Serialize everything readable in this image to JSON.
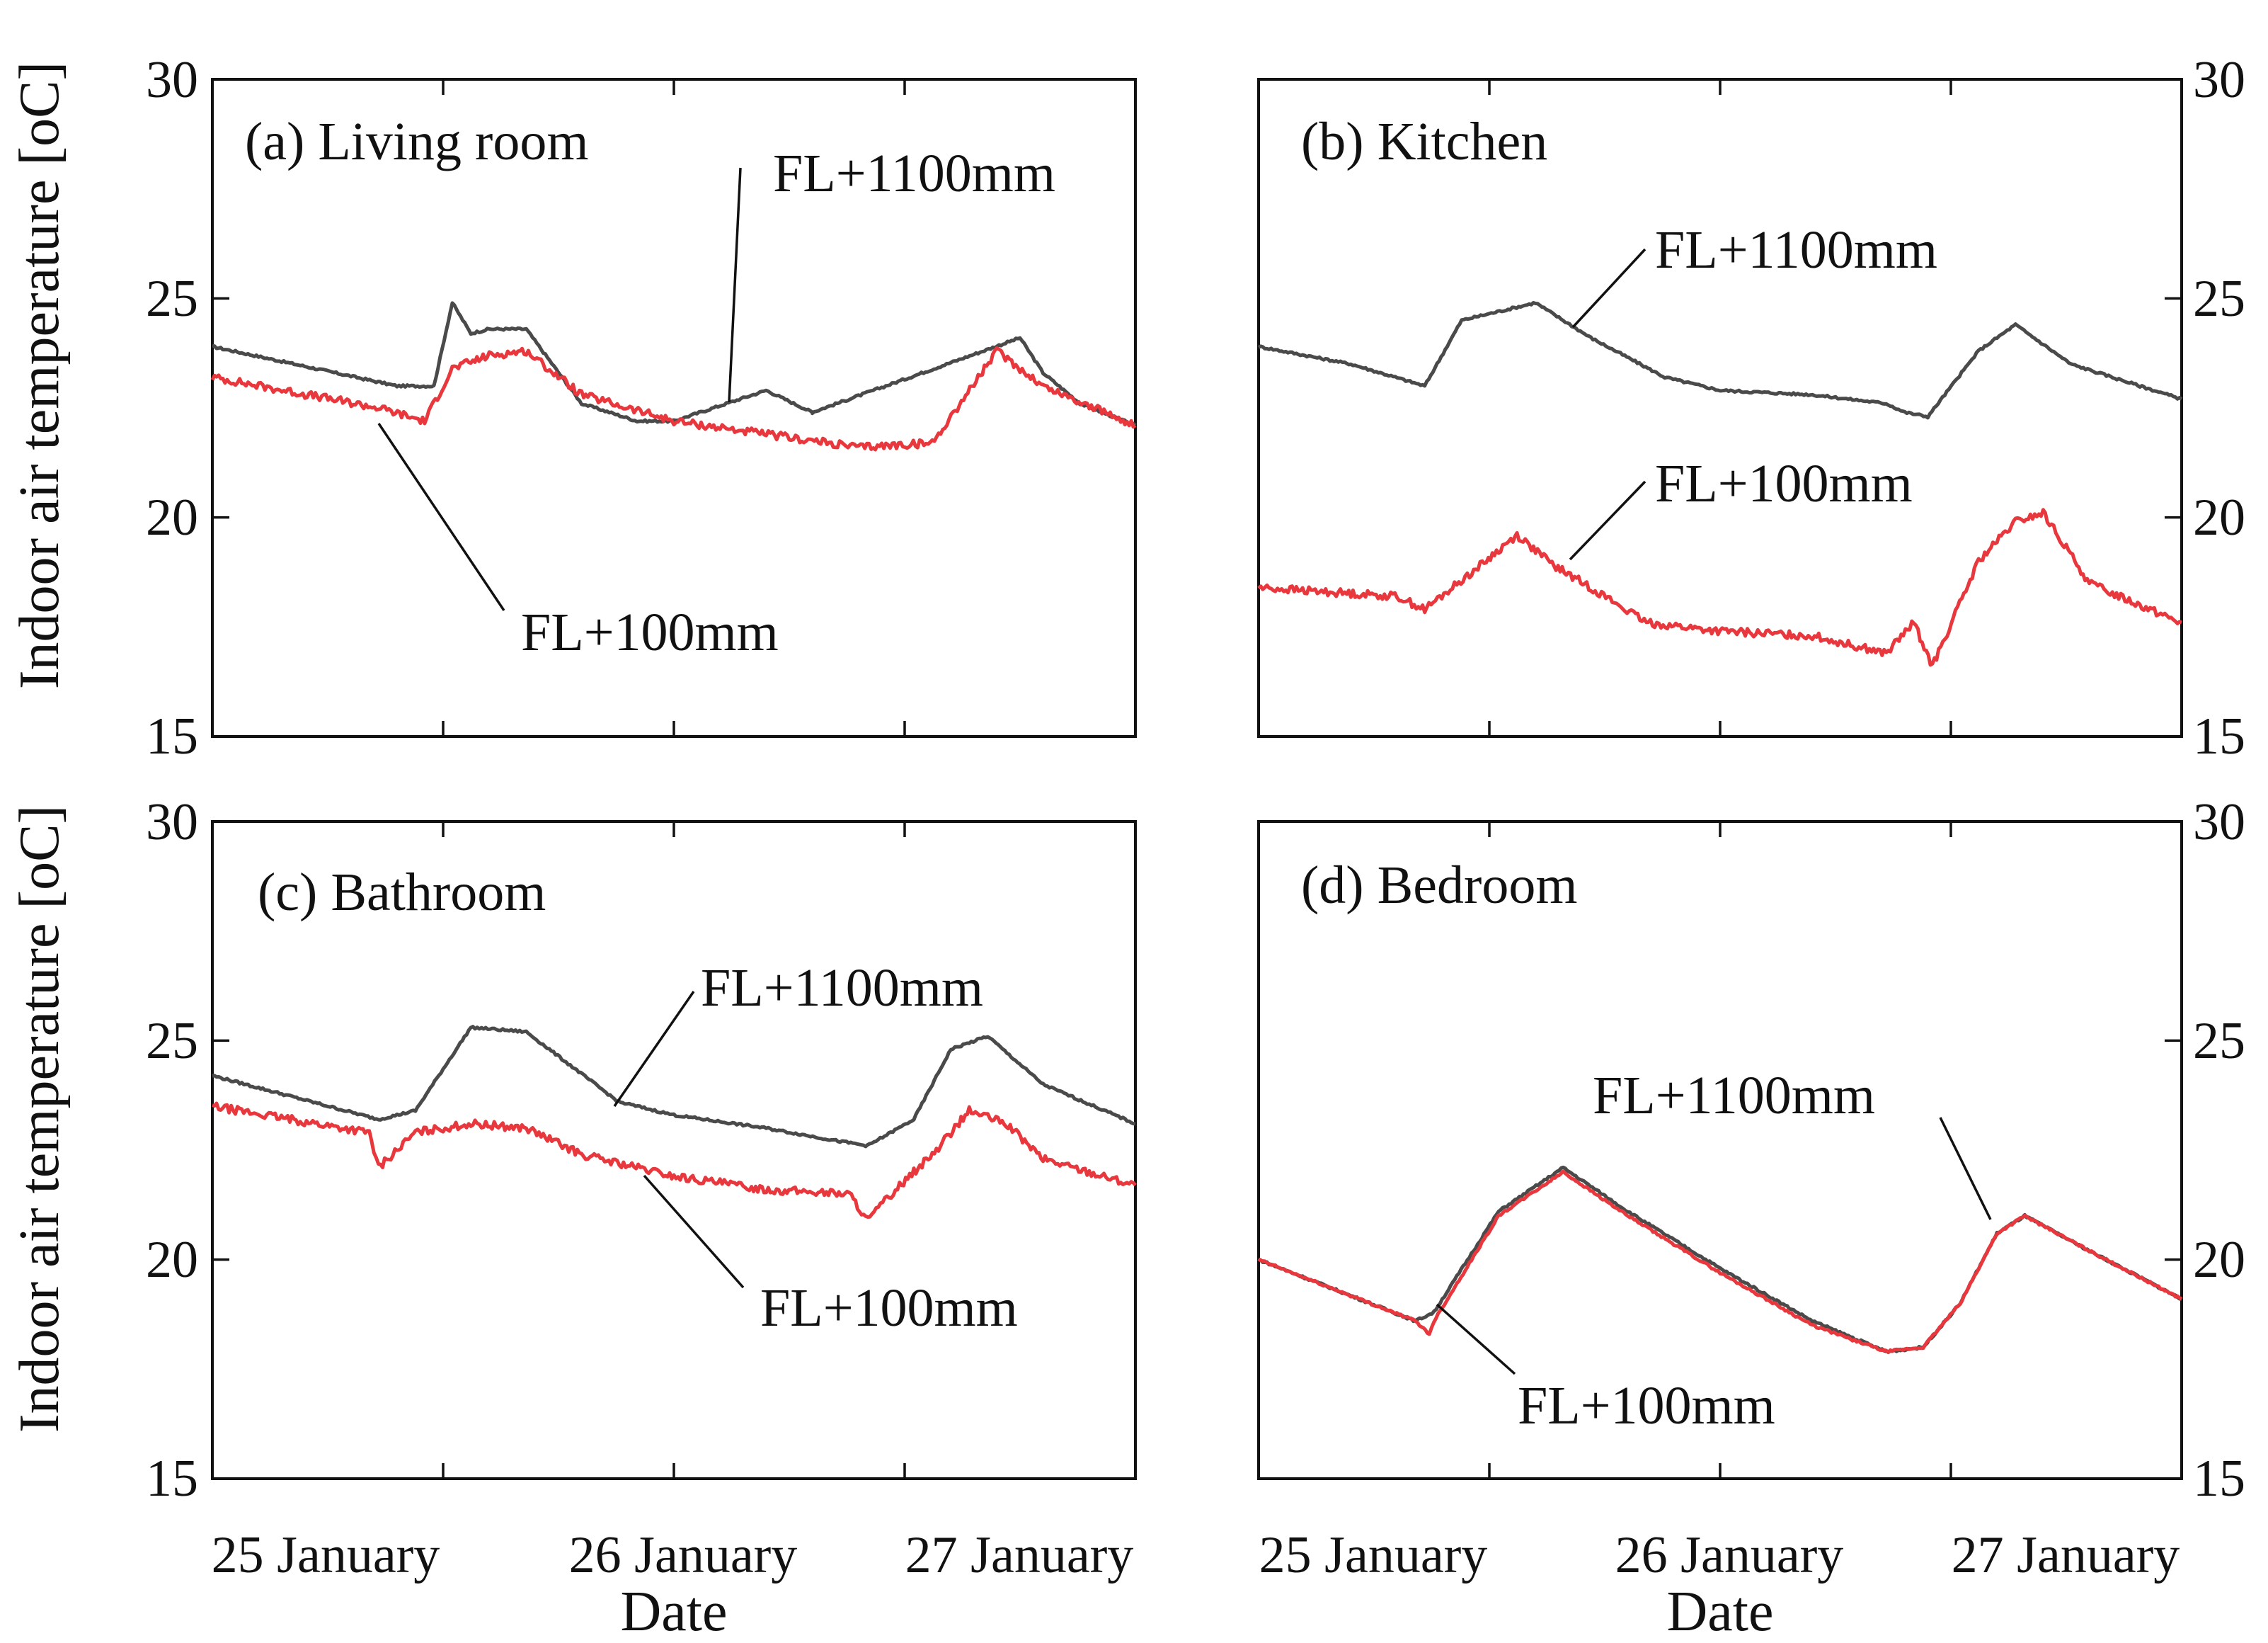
{
  "chart_data": [
    {
      "type": "line",
      "panel": "a",
      "title": "(a) Living room",
      "xlabel": "",
      "ylabel": "Indoor air temperature [oC]",
      "ylim": [
        15,
        30
      ],
      "xlim": [
        0,
        2
      ],
      "x_ticks": [
        "25 January",
        "26 January",
        "27 January"
      ],
      "yticks": [
        15,
        20,
        25,
        30
      ],
      "series": [
        {
          "name": "FL+1100mm",
          "color": "#4a4a4a",
          "x": [
            0,
            0.4,
            0.48,
            0.52,
            0.56,
            0.6,
            0.68,
            0.8,
            0.92,
            1.0,
            1.2,
            1.3,
            1.3,
            1.3,
            1.75,
            1.8,
            1.88,
            2.0
          ],
          "y": [
            23.9,
            23.0,
            23.0,
            24.9,
            24.2,
            24.3,
            24.3,
            22.6,
            22.2,
            22.2,
            22.9,
            22.4,
            22.4,
            22.4,
            24.1,
            23.3,
            22.6,
            22.1
          ]
        },
        {
          "name": "FL+100mm",
          "color": "#e8383d",
          "x": [
            0,
            0.36,
            0.46,
            0.52,
            0.6,
            0.68,
            0.8,
            1.0,
            1.4,
            1.56,
            1.7,
            1.8,
            2.0
          ],
          "y": [
            23.2,
            22.5,
            22.2,
            23.4,
            23.7,
            23.8,
            22.8,
            22.2,
            21.6,
            21.7,
            23.8,
            23.0,
            22.1
          ]
        }
      ],
      "annotations": [
        {
          "text": "FL+1100mm",
          "series": "FL+1100mm"
        },
        {
          "text": "FL+100mm",
          "series": "FL+100mm"
        }
      ]
    },
    {
      "type": "line",
      "panel": "b",
      "title": "(b) Kitchen",
      "ylim": [
        15,
        30
      ],
      "xlim": [
        0,
        2
      ],
      "x_ticks": [],
      "yticks": [
        15,
        20,
        25,
        30
      ],
      "series": [
        {
          "name": "FL+1100mm",
          "color": "#4a4a4a",
          "x": [
            0,
            0.2,
            0.36,
            0.44,
            0.6,
            0.72,
            0.88,
            1.0,
            1.2,
            1.36,
            1.4,
            1.45,
            1.56,
            1.64,
            1.76,
            2.0
          ],
          "y": [
            23.9,
            23.5,
            23.0,
            24.5,
            24.9,
            24.1,
            23.2,
            22.9,
            22.8,
            22.6,
            22.4,
            22.3,
            23.8,
            24.4,
            23.5,
            22.7
          ]
        },
        {
          "name": "FL+100mm",
          "color": "#e8383d",
          "x": [
            0,
            0.3,
            0.36,
            0.48,
            0.56,
            0.64,
            0.72,
            0.84,
            1.0,
            1.2,
            1.36,
            1.42,
            1.46,
            1.56,
            1.64,
            1.7,
            1.8,
            2.0
          ],
          "y": [
            18.4,
            18.2,
            17.9,
            18.9,
            19.6,
            18.9,
            18.4,
            17.6,
            17.4,
            17.3,
            16.9,
            17.6,
            16.6,
            19.0,
            19.9,
            20.1,
            18.5,
            17.6
          ]
        }
      ],
      "annotations": [
        {
          "text": "FL+1100mm",
          "series": "FL+1100mm"
        },
        {
          "text": "FL+100mm",
          "series": "FL+100mm"
        }
      ]
    },
    {
      "type": "line",
      "panel": "c",
      "title": "(c) Bathroom",
      "xlabel": "Date",
      "ylim": [
        15,
        30
      ],
      "xlim": [
        0,
        2
      ],
      "x_ticks": [
        "25 January",
        "26 January",
        "27 January"
      ],
      "yticks": [
        15,
        20,
        25,
        30
      ],
      "series": [
        {
          "name": "FL+1100mm",
          "color": "#4a4a4a",
          "x": [
            0,
            0.36,
            0.44,
            0.56,
            0.68,
            0.88,
            1.0,
            1.2,
            1.36,
            1.42,
            1.52,
            1.6,
            1.68,
            1.8,
            2.0
          ],
          "y": [
            24.2,
            23.2,
            23.4,
            25.3,
            25.2,
            23.6,
            23.3,
            23.0,
            22.7,
            22.6,
            23.2,
            24.8,
            25.1,
            24.0,
            23.1
          ]
        },
        {
          "name": "FL+100mm",
          "color": "#e8383d",
          "x": [
            0,
            0.34,
            0.36,
            0.44,
            0.56,
            0.68,
            0.8,
            1.0,
            1.2,
            1.38,
            1.42,
            1.48,
            1.56,
            1.64,
            1.72,
            1.8,
            2.0
          ],
          "y": [
            23.5,
            22.9,
            22.1,
            22.9,
            23.1,
            23.0,
            22.4,
            21.9,
            21.6,
            21.5,
            20.9,
            21.6,
            22.4,
            23.4,
            23.1,
            22.3,
            21.7
          ]
        }
      ],
      "annotations": [
        {
          "text": "FL+1100mm",
          "series": "FL+1100mm"
        },
        {
          "text": "FL+100mm",
          "series": "FL+100mm"
        }
      ]
    },
    {
      "type": "line",
      "panel": "d",
      "title": "(d) Bedroom",
      "xlabel": "Date",
      "ylim": [
        15,
        30
      ],
      "xlim": [
        0,
        2
      ],
      "x_ticks": [
        "25 January",
        "26 January",
        "27 January"
      ],
      "yticks": [
        15,
        20,
        25,
        30
      ],
      "series": [
        {
          "name": "FL+1100mm",
          "color": "#4a4a4a",
          "x": [
            0,
            0.34,
            0.38,
            0.52,
            0.66,
            0.8,
            1.0,
            1.2,
            1.36,
            1.44,
            1.52,
            1.6,
            1.66,
            1.8,
            2.0
          ],
          "y": [
            20.0,
            18.6,
            18.8,
            21.1,
            22.1,
            21.1,
            19.8,
            18.6,
            17.9,
            18.0,
            19.0,
            20.6,
            21.0,
            20.2,
            19.1
          ]
        },
        {
          "name": "FL+100mm",
          "color": "#e8383d",
          "x": [
            0,
            0.34,
            0.37,
            0.38,
            0.52,
            0.66,
            0.8,
            1.0,
            1.2,
            1.36,
            1.44,
            1.52,
            1.6,
            1.66,
            1.8,
            2.0
          ],
          "y": [
            20.0,
            18.6,
            18.3,
            18.6,
            21.0,
            22.0,
            21.0,
            19.7,
            18.5,
            17.9,
            18.0,
            19.0,
            20.6,
            21.0,
            20.2,
            19.1
          ]
        }
      ],
      "annotations": [
        {
          "text": "FL+1100mm",
          "series": "FL+1100mm"
        },
        {
          "text": "FL+100mm",
          "series": "FL+100mm"
        }
      ]
    }
  ],
  "labels": {
    "ylabel": "Indoor air temperature [oC]",
    "ylabel_lower": "Indoor air temperature [oC]",
    "xlabel_left": "Date",
    "xlabel_right": "Date"
  },
  "colors": {
    "high": "#4a4a4a",
    "low": "#e8383d"
  }
}
